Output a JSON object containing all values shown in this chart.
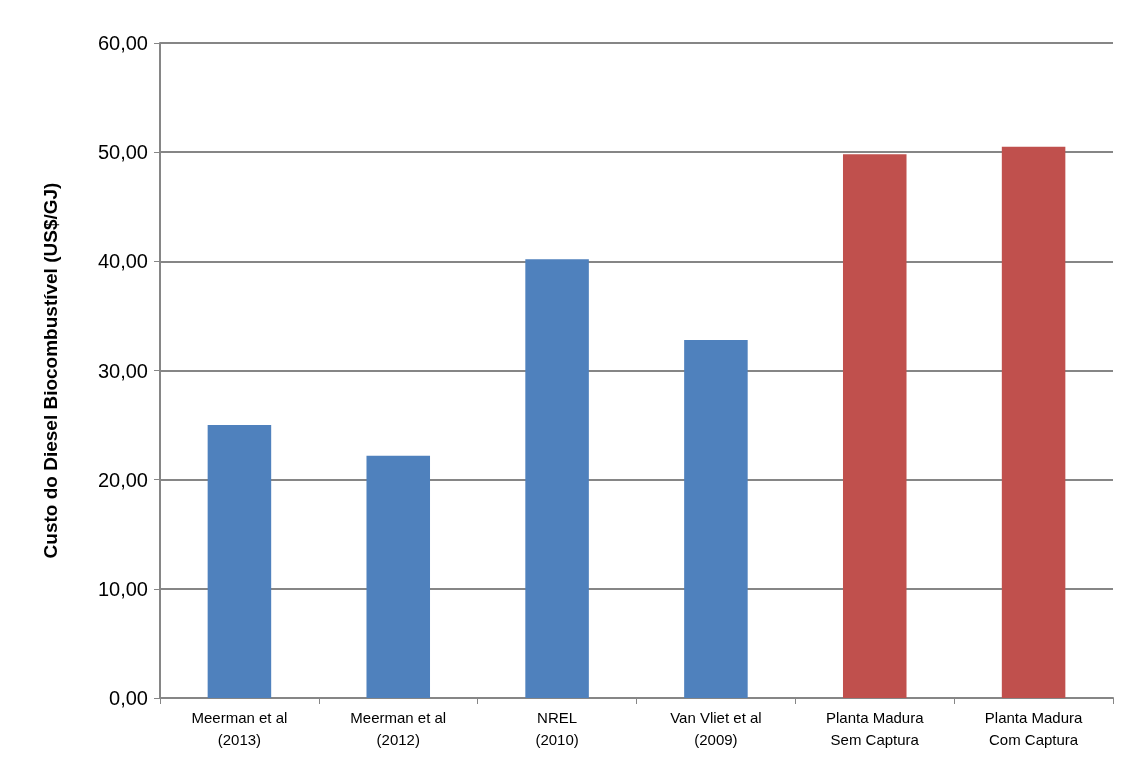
{
  "chart_data": {
    "type": "bar",
    "ylabel": "Custo do Diesel Biocombustível (US$/GJ)",
    "categories": [
      "Meerman et al\n(2013)",
      "Meerman et al\n(2012)",
      "NREL\n(2010)",
      "Van Vliet et al\n(2009)",
      "Planta Madura\nSem Captura",
      "Planta Madura\nCom Captura"
    ],
    "values": [
      25.0,
      22.2,
      40.2,
      32.8,
      49.8,
      50.5
    ],
    "colors": [
      "#4f81bd",
      "#4f81bd",
      "#4f81bd",
      "#4f81bd",
      "#c0504d",
      "#c0504d"
    ],
    "ylim": [
      0,
      60
    ],
    "yticks": [
      {
        "value": 0,
        "label": "0,00"
      },
      {
        "value": 10,
        "label": "10,00"
      },
      {
        "value": 20,
        "label": "20,00"
      },
      {
        "value": 30,
        "label": "30,00"
      },
      {
        "value": 40,
        "label": "40,00"
      },
      {
        "value": 50,
        "label": "50,00"
      },
      {
        "value": 60,
        "label": "60,00"
      }
    ],
    "grid": "y"
  }
}
